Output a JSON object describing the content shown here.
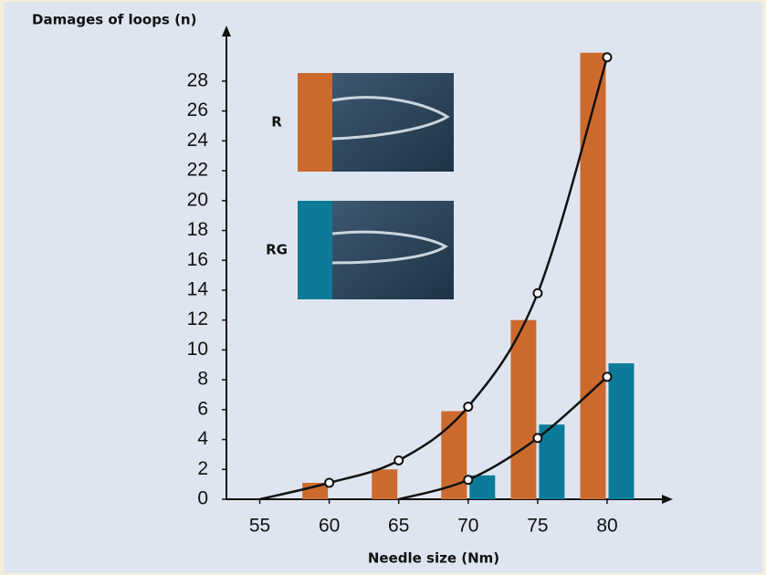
{
  "chart_data": {
    "type": "bar",
    "y_label": "Damages of loops (n)",
    "x_label": "Needle size (Nm)",
    "xlim": [
      52.6,
      84.6
    ],
    "xticks": [
      55,
      60,
      65,
      70,
      75,
      80
    ],
    "ylim": [
      0,
      31.6
    ],
    "yticks": [
      0,
      2,
      4,
      6,
      8,
      10,
      12,
      14,
      16,
      18,
      20,
      22,
      24,
      26,
      28
    ],
    "series": [
      {
        "name": "R",
        "color": "#cc6a2e",
        "x": [
          60,
          65,
          70,
          75,
          80
        ],
        "values": [
          1.1,
          2,
          5.9,
          12,
          29.9
        ]
      },
      {
        "name": "RG",
        "color": "#0b7b97",
        "x": [
          70,
          75,
          80
        ],
        "values": [
          1.6,
          5,
          9.1
        ]
      }
    ],
    "curves": [
      {
        "color": "#111111",
        "x": [
          55,
          60,
          65,
          70,
          75,
          80
        ],
        "values": [
          0,
          1.1,
          2.6,
          6.2,
          13.8,
          29.6
        ]
      },
      {
        "color": "#111111",
        "x": [
          65,
          70,
          75,
          80
        ],
        "values": [
          0,
          1.3,
          4.1,
          8.2
        ]
      }
    ]
  }
}
